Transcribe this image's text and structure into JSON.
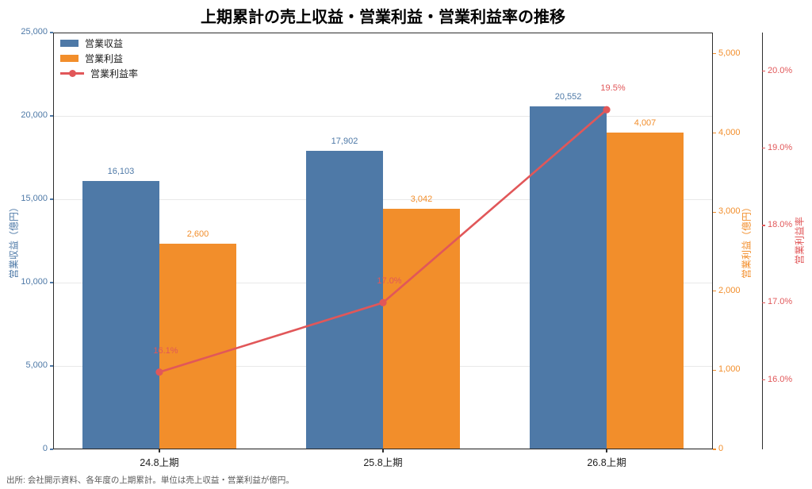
{
  "title": "上期累計の売上収益・営業利益・営業利益率の推移",
  "source_note": "出所: 会社開示資料、各年度の上期累計。単位は売上収益・営業利益が億円。",
  "colors": {
    "revenue": "#4E79A7",
    "profit": "#F28E2B",
    "margin": "#E15759",
    "grid": "#e8e8e8",
    "spine": "#2e2e2e",
    "x_tick_text": "#1f1f1f",
    "footer_text": "#595959"
  },
  "chart_data": {
    "type": "bar",
    "subtype": "grouped bars with secondary line",
    "categories": [
      "24.8上期",
      "25.8上期",
      "26.8上期"
    ],
    "series": [
      {
        "name": "営業収益",
        "kind": "bar",
        "axis": "left",
        "values": [
          16103,
          17902,
          20552
        ],
        "labels": [
          "16,103",
          "17,902",
          "20,552"
        ],
        "color": "#4E79A7"
      },
      {
        "name": "営業利益",
        "kind": "bar",
        "axis": "right1",
        "values": [
          2600,
          3042,
          4007
        ],
        "labels": [
          "2,600",
          "3,042",
          "4,007"
        ],
        "color": "#F28E2B"
      },
      {
        "name": "営業利益率",
        "kind": "line",
        "axis": "right2",
        "values": [
          16.1,
          17.0,
          19.5
        ],
        "labels": [
          "16.1%",
          "17.0%",
          "19.5%"
        ],
        "color": "#E15759"
      }
    ],
    "axes": {
      "left": {
        "label": "営業収益（億円）",
        "min": 0,
        "max": 25000,
        "ticks": [
          0,
          5000,
          10000,
          15000,
          20000,
          25000
        ],
        "tick_labels": [
          "0",
          "5,000",
          "10,000",
          "15,000",
          "20,000",
          "25,000"
        ],
        "color": "#4E79A7"
      },
      "right1": {
        "label": "営業利益（億円）",
        "min": 0,
        "max": 5270,
        "ticks": [
          0,
          1000,
          2000,
          3000,
          4000,
          5000
        ],
        "tick_labels": [
          "0",
          "1,000",
          "2,000",
          "3,000",
          "4,000",
          "5,000"
        ],
        "color": "#F28E2B"
      },
      "right2": {
        "label": "営業利益率",
        "min": 15.1,
        "max": 20.5,
        "ticks": [
          16,
          17,
          18,
          19,
          20
        ],
        "tick_labels": [
          "16.0%",
          "17.0%",
          "18.0%",
          "19.0%",
          "20.0%"
        ],
        "color": "#E15759"
      }
    },
    "grid": "horizontal, at left-axis ticks",
    "legend_position": "upper-left, frameless"
  }
}
